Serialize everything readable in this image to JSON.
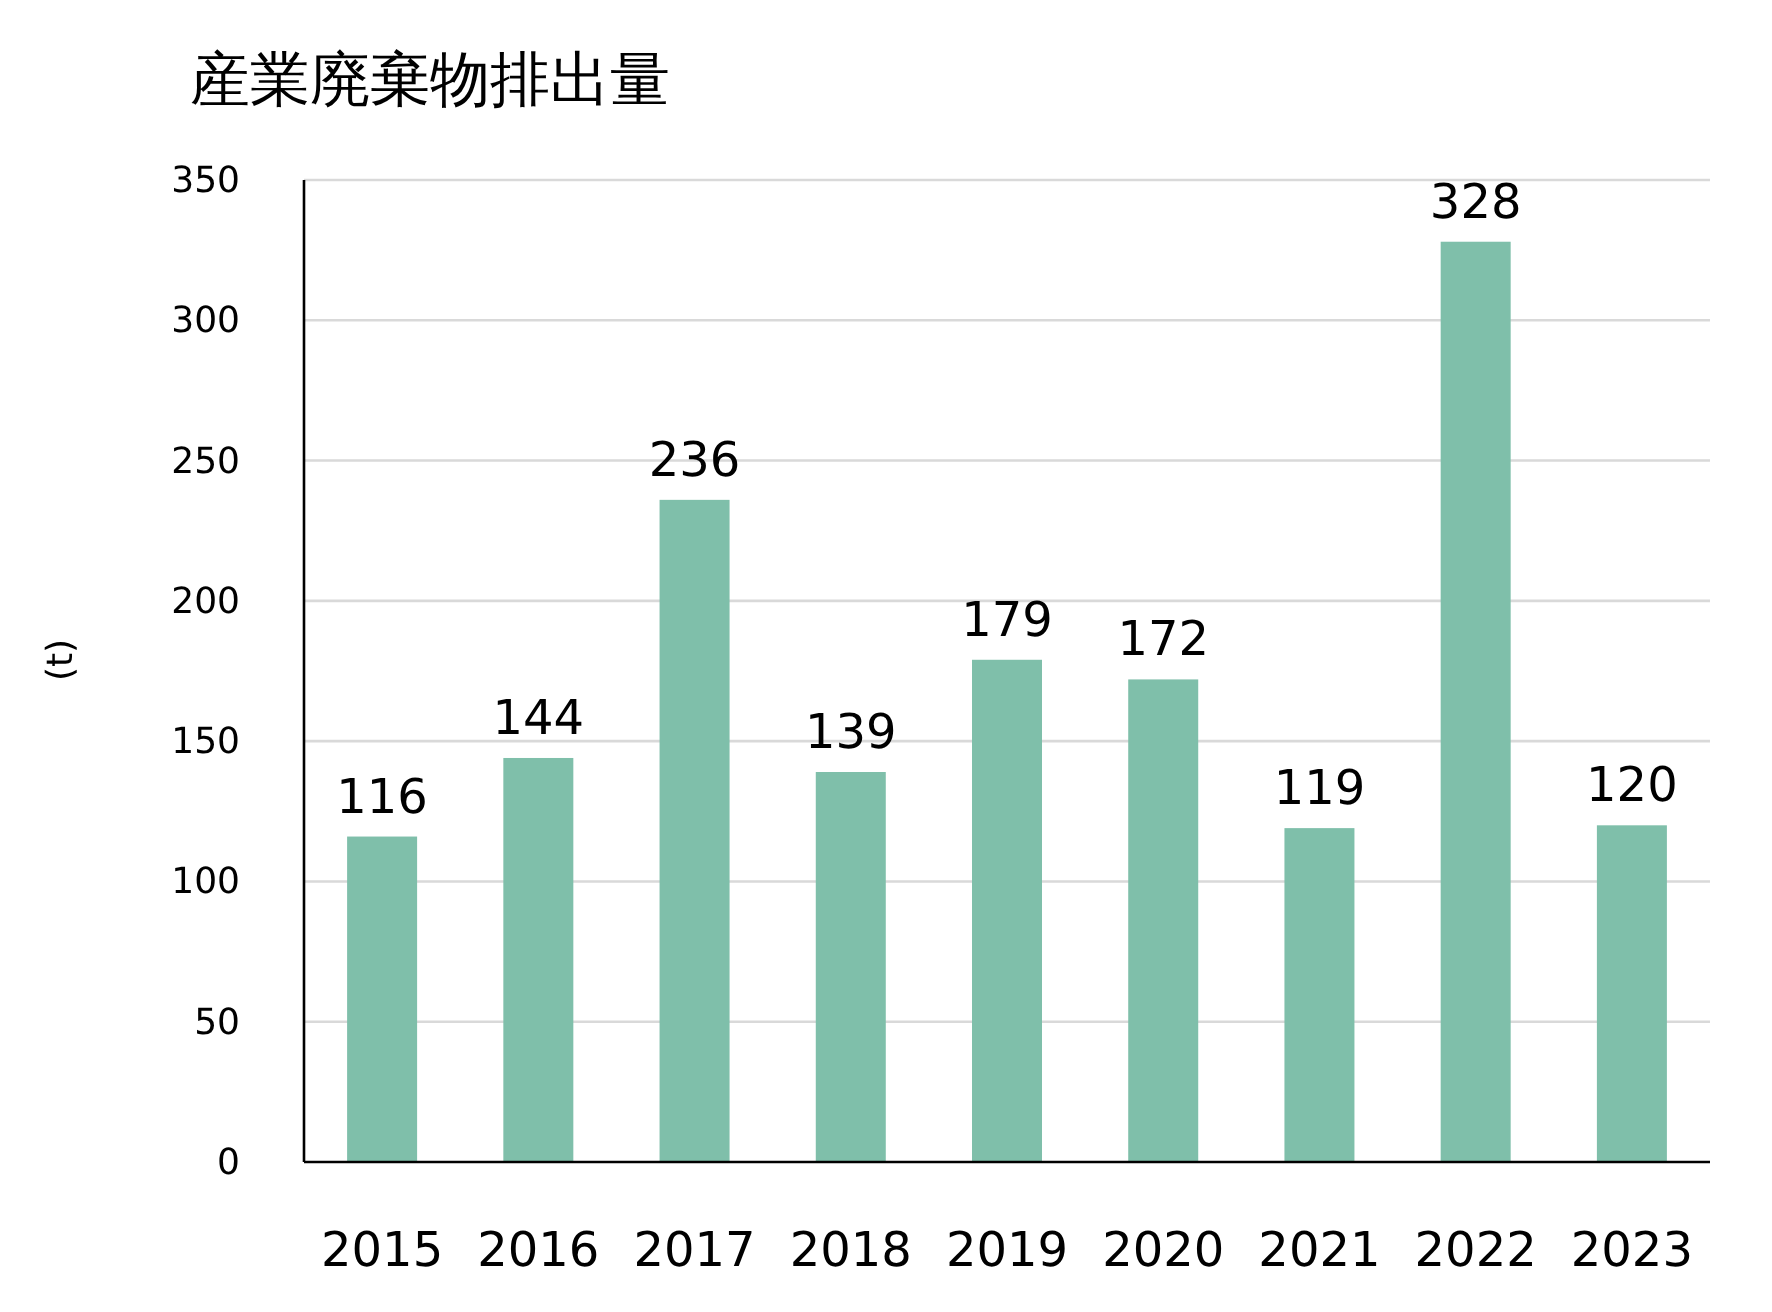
{
  "chart_data": {
    "type": "bar",
    "title": "産業廃棄物排出量",
    "ylabel": "(t)",
    "categories": [
      "2015",
      "2016",
      "2017",
      "2018",
      "2019",
      "2020",
      "2021",
      "2022",
      "2023"
    ],
    "values": [
      116,
      144,
      236,
      139,
      179,
      172,
      119,
      328,
      120
    ],
    "color": "#7fbfaa",
    "ylim": [
      0,
      350
    ],
    "yticks": [
      0,
      50,
      100,
      150,
      200,
      250,
      300,
      350
    ],
    "grid": "y",
    "data_labels": true
  }
}
